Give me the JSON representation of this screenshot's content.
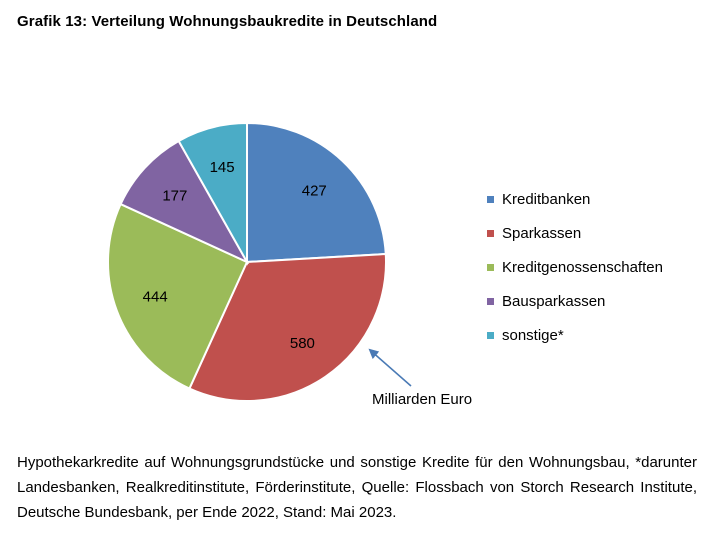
{
  "title": "Grafik 13: Verteilung Wohnungsbaukredite in Deutschland",
  "chart_data": {
    "type": "pie",
    "title": "Grafik 13: Verteilung Wohnungsbaukredite in Deutschland",
    "categories": [
      "Kreditbanken",
      "Sparkassen",
      "Kreditgenossenschaften",
      "Bausparkassen",
      "sonstige*"
    ],
    "values": [
      427,
      580,
      444,
      177,
      145
    ],
    "colors": [
      "#4f81bd",
      "#c0504d",
      "#9bbb59",
      "#8064a2",
      "#4bacc6"
    ],
    "unit_annotation": "Milliarden Euro",
    "legend_position": "right"
  },
  "footnote": "Hypothekarkredite auf Wohnungsgrundstücke und sonstige Kredite für den Wohnungsbau, *darunter Landesbanken, Realkreditinstitute, Förderinstitute, Quelle: Flossbach von Storch Research Institute, Deutsche Bundesbank, per Ende 2022, Stand: Mai 2023."
}
